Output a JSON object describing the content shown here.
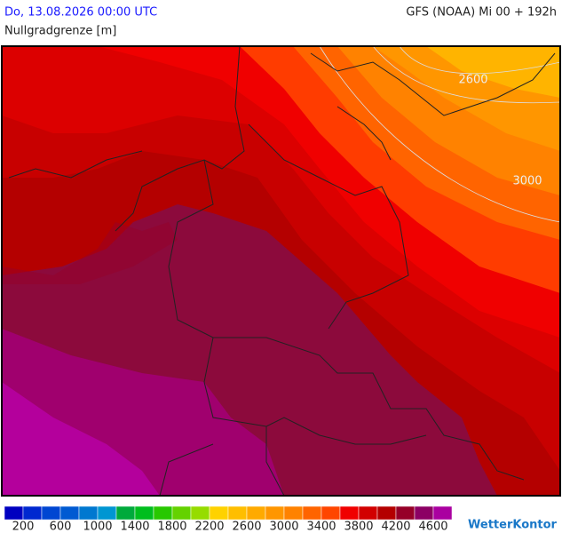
{
  "header": {
    "left": "Do, 13.08.2026 00:00 UTC",
    "right": "GFS (NOAA) Mi 00 + 192h",
    "subtitle": "Nullgradgrenze [m]"
  },
  "map": {
    "contour_labels": [
      "2600",
      "3000"
    ]
  },
  "legend": {
    "colors": [
      "#0000c0",
      "#0028d0",
      "#0046d2",
      "#005ad2",
      "#0078d0",
      "#0096d2",
      "#00aa3c",
      "#00be1e",
      "#28c800",
      "#64d200",
      "#96dc00",
      "#ffd200",
      "#ffbe00",
      "#ffaa00",
      "#ff9600",
      "#ff8200",
      "#ff6400",
      "#ff4600",
      "#f00000",
      "#d20000",
      "#b40000",
      "#960028",
      "#8c0064",
      "#aa00a0"
    ],
    "labels": [
      200,
      600,
      1000,
      1400,
      1800,
      2200,
      2600,
      3000,
      3400,
      3800,
      4200,
      4600
    ]
  },
  "logo": "WetterKontor"
}
